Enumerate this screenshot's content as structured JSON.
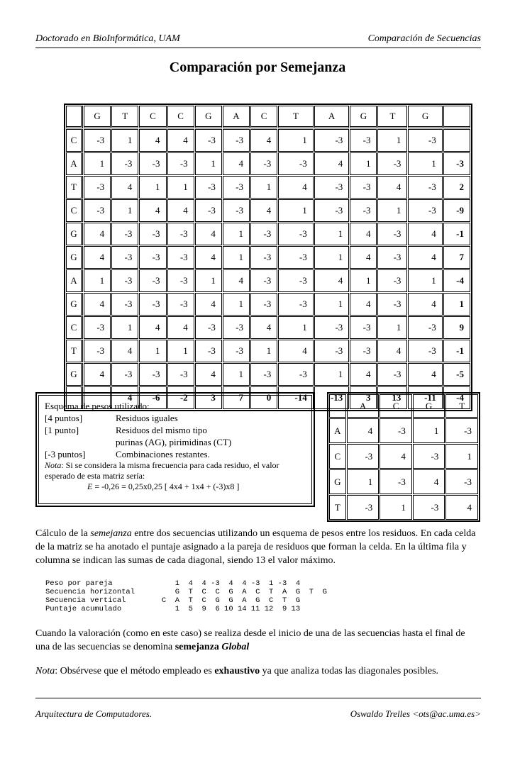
{
  "header": {
    "left": "Doctorado en BioInformática, UAM",
    "right": "Comparación de Secuencias"
  },
  "title": "Comparación por Semejanza",
  "matrix": {
    "columns": [
      "G",
      "T",
      "C",
      "C",
      "G",
      "A",
      "C",
      "T",
      "A",
      "G",
      "T",
      "G"
    ],
    "rows": [
      {
        "label": "C",
        "values": [
          "-3",
          "1",
          "4",
          "4",
          "-3",
          "-3",
          "4",
          "1",
          "-3",
          "-3",
          "1",
          "-3"
        ],
        "sum": ""
      },
      {
        "label": "A",
        "values": [
          "1",
          "-3",
          "-3",
          "-3",
          "1",
          "4",
          "-3",
          "-3",
          "4",
          "1",
          "-3",
          "1"
        ],
        "sum": "-3"
      },
      {
        "label": "T",
        "values": [
          "-3",
          "4",
          "1",
          "1",
          "-3",
          "-3",
          "1",
          "4",
          "-3",
          "-3",
          "4",
          "-3"
        ],
        "sum": "2"
      },
      {
        "label": "C",
        "values": [
          "-3",
          "1",
          "4",
          "4",
          "-3",
          "-3",
          "4",
          "1",
          "-3",
          "-3",
          "1",
          "-3"
        ],
        "sum": "-9"
      },
      {
        "label": "G",
        "values": [
          "4",
          "-3",
          "-3",
          "-3",
          "4",
          "1",
          "-3",
          "-3",
          "1",
          "4",
          "-3",
          "4"
        ],
        "sum": "-1"
      },
      {
        "label": "G",
        "values": [
          "4",
          "-3",
          "-3",
          "-3",
          "4",
          "1",
          "-3",
          "-3",
          "1",
          "4",
          "-3",
          "4"
        ],
        "sum": "7"
      },
      {
        "label": "A",
        "values": [
          "1",
          "-3",
          "-3",
          "-3",
          "1",
          "4",
          "-3",
          "-3",
          "4",
          "1",
          "-3",
          "1"
        ],
        "sum": "-4"
      },
      {
        "label": "G",
        "values": [
          "4",
          "-3",
          "-3",
          "-3",
          "4",
          "1",
          "-3",
          "-3",
          "1",
          "4",
          "-3",
          "4"
        ],
        "sum": "1"
      },
      {
        "label": "C",
        "values": [
          "-3",
          "1",
          "4",
          "4",
          "-3",
          "-3",
          "4",
          "1",
          "-3",
          "-3",
          "1",
          "-3"
        ],
        "sum": "9"
      },
      {
        "label": "T",
        "values": [
          "-3",
          "4",
          "1",
          "1",
          "-3",
          "-3",
          "1",
          "4",
          "-3",
          "-3",
          "4",
          "-3"
        ],
        "sum": "-1"
      },
      {
        "label": "G",
        "values": [
          "4",
          "-3",
          "-3",
          "-3",
          "4",
          "1",
          "-3",
          "-3",
          "1",
          "4",
          "-3",
          "4"
        ],
        "sum": "-5"
      }
    ],
    "bottom_sums": [
      "",
      "4",
      "-6",
      "-2",
      "3",
      "7",
      "0",
      "-14",
      "-13",
      "3",
      "13",
      "-11",
      "-4"
    ]
  },
  "scheme": {
    "title": "Esquema de pesos utilizado:",
    "items": [
      {
        "k": "[4 puntos]",
        "v": "Residuos iguales"
      },
      {
        "k": "[1 punto]",
        "v": "Residuos del mismo tipo"
      },
      {
        "k": "",
        "v": "purinas (AG), pirimidinas (CT)"
      },
      {
        "k": "[-3 puntos]",
        "v": "Combinaciones restantes."
      }
    ],
    "note_label": "Nota",
    "note": ": Si se considera la misma frecuencia para cada residuo, el valor esperado de esta matriz sería:",
    "formula_var": "E",
    "formula": " = -0,26  = 0,25x0,25 [ 4x4 + 1x4 + (-3)x8 ]"
  },
  "weights": {
    "columns": [
      "A",
      "C",
      "G",
      "T"
    ],
    "rows": [
      {
        "label": "A",
        "values": [
          "4",
          "-3",
          "1",
          "-3"
        ]
      },
      {
        "label": "C",
        "values": [
          "-3",
          "4",
          "-3",
          "1"
        ]
      },
      {
        "label": "G",
        "values": [
          "1",
          "-3",
          "4",
          "-3"
        ]
      },
      {
        "label": "T",
        "values": [
          "-3",
          "1",
          "-3",
          "4"
        ]
      }
    ]
  },
  "para1": {
    "a": "Cálculo de la ",
    "em": "semejanza",
    "b": " entre dos secuencias utilizando un esquema de pesos entre los residuos. En cada celda de la matriz se ha anotado el puntaje asignado a la pareja de residuos que forman la celda. En la última fila y columna se indican las sumas de cada diagonal, siendo 13 el valor máximo."
  },
  "mono": "Peso por pareja              1  4  4 -3  4  4 -3  1 -3  4\nSecuencia horizontal         G  T  C  C  G  A  C  T  A  G  T  G\nSecuencia vertical        C  A  T  C  G  G  A  G  C  T  G\nPuntaje acumulado            1  5  9  6 10 14 11 12  9 13",
  "para2": {
    "a": "Cuando la valoración (como en este caso) se realiza desde el inicio de una de las secuencias hasta el final de una de las secuencias se denomina ",
    "b1": "semejanza ",
    "b2": "Global"
  },
  "para3": {
    "em": "Nota",
    "a": ": Obsérvese que el método empleado es ",
    "b": "exhaustivo",
    "c": " ya que analiza todas las diagonales posibles."
  },
  "footer": {
    "left": "Arquitectura de Computadores.",
    "right": "Oswaldo Trelles <ots@ac.uma.es>"
  }
}
